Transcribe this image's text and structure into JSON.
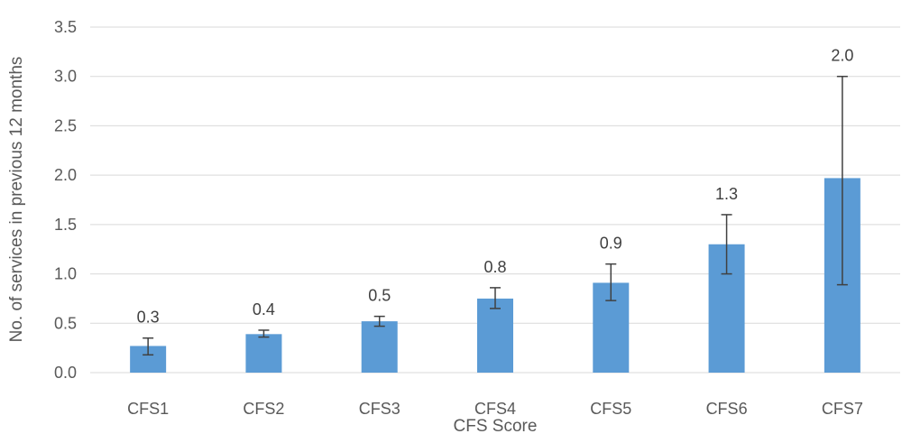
{
  "chart_data": {
    "type": "bar",
    "title": "",
    "xlabel": "CFS Score",
    "ylabel": "No. of services in previous 12 months",
    "categories": [
      "CFS1",
      "CFS2",
      "CFS3",
      "CFS4",
      "CFS5",
      "CFS6",
      "CFS7"
    ],
    "values": [
      0.27,
      0.39,
      0.52,
      0.75,
      0.91,
      1.3,
      1.97
    ],
    "data_labels": [
      "0.3",
      "0.4",
      "0.5",
      "0.8",
      "0.9",
      "1.3",
      "2.0"
    ],
    "error_low": [
      0.18,
      0.36,
      0.47,
      0.65,
      0.73,
      1.0,
      0.89
    ],
    "error_high": [
      0.35,
      0.43,
      0.57,
      0.86,
      1.1,
      1.6,
      3.0
    ],
    "ylim": [
      0,
      3.5
    ],
    "yticks": [
      "0.0",
      "0.5",
      "1.0",
      "1.5",
      "2.0",
      "2.5",
      "3.0",
      "3.5"
    ],
    "grid": true,
    "bar_color": "#5b9bd5"
  }
}
